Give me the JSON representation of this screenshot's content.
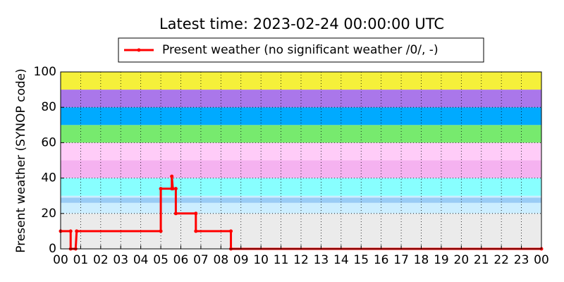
{
  "chart_data": {
    "type": "line",
    "title": "Latest time: 2023-02-24 00:00:00 UTC",
    "y_label": "Present weather (SYNOP code)",
    "x": [
      0,
      0.5,
      0.5,
      0.75,
      0.8,
      5.0,
      5.0,
      5.55,
      5.55,
      5.6,
      5.75,
      5.75,
      6.75,
      6.75,
      8.5,
      8.5,
      24
    ],
    "series": [
      {
        "name": "Present weather (no significant weather /0/, -)",
        "color": "#ff0000",
        "values": [
          10,
          10,
          0,
          0,
          10,
          10,
          34,
          34,
          41,
          34,
          34,
          20,
          20,
          10,
          10,
          0,
          0
        ]
      }
    ],
    "xlim": [
      0,
      24
    ],
    "xticks": [
      {
        "value": 0,
        "label": "00"
      },
      {
        "value": 1,
        "label": "01"
      },
      {
        "value": 2,
        "label": "02"
      },
      {
        "value": 3,
        "label": "03"
      },
      {
        "value": 4,
        "label": "04"
      },
      {
        "value": 5,
        "label": "05"
      },
      {
        "value": 6,
        "label": "06"
      },
      {
        "value": 7,
        "label": "07"
      },
      {
        "value": 8,
        "label": "08"
      },
      {
        "value": 9,
        "label": "09"
      },
      {
        "value": 10,
        "label": "10"
      },
      {
        "value": 11,
        "label": "11"
      },
      {
        "value": 12,
        "label": "12"
      },
      {
        "value": 13,
        "label": "13"
      },
      {
        "value": 14,
        "label": "14"
      },
      {
        "value": 15,
        "label": "15"
      },
      {
        "value": 16,
        "label": "16"
      },
      {
        "value": 17,
        "label": "17"
      },
      {
        "value": 18,
        "label": "18"
      },
      {
        "value": 19,
        "label": "19"
      },
      {
        "value": 20,
        "label": "20"
      },
      {
        "value": 21,
        "label": "21"
      },
      {
        "value": 22,
        "label": "22"
      },
      {
        "value": 23,
        "label": "23"
      },
      {
        "value": 24,
        "label": "00"
      }
    ],
    "ylim": [
      0,
      100
    ],
    "yticks": [
      0,
      20,
      40,
      60,
      80,
      100
    ],
    "grid": true,
    "legend": "top",
    "bands": [
      {
        "from": 0,
        "to": 20,
        "color": "#ebebeb"
      },
      {
        "from": 20,
        "to": 26,
        "color": "#cceeff"
      },
      {
        "from": 26,
        "to": 29,
        "color": "#99ccf5"
      },
      {
        "from": 29,
        "to": 30,
        "color": "#cceeff"
      },
      {
        "from": 30,
        "to": 40,
        "color": "#88ffff"
      },
      {
        "from": 40,
        "to": 50,
        "color": "#f5b2f0"
      },
      {
        "from": 50,
        "to": 60,
        "color": "#ffccf8"
      },
      {
        "from": 60,
        "to": 70,
        "color": "#77ea6e"
      },
      {
        "from": 70,
        "to": 80,
        "color": "#00aaff"
      },
      {
        "from": 80,
        "to": 90,
        "color": "#aa77ea"
      },
      {
        "from": 90,
        "to": 100,
        "color": "#f5f03a"
      }
    ]
  }
}
